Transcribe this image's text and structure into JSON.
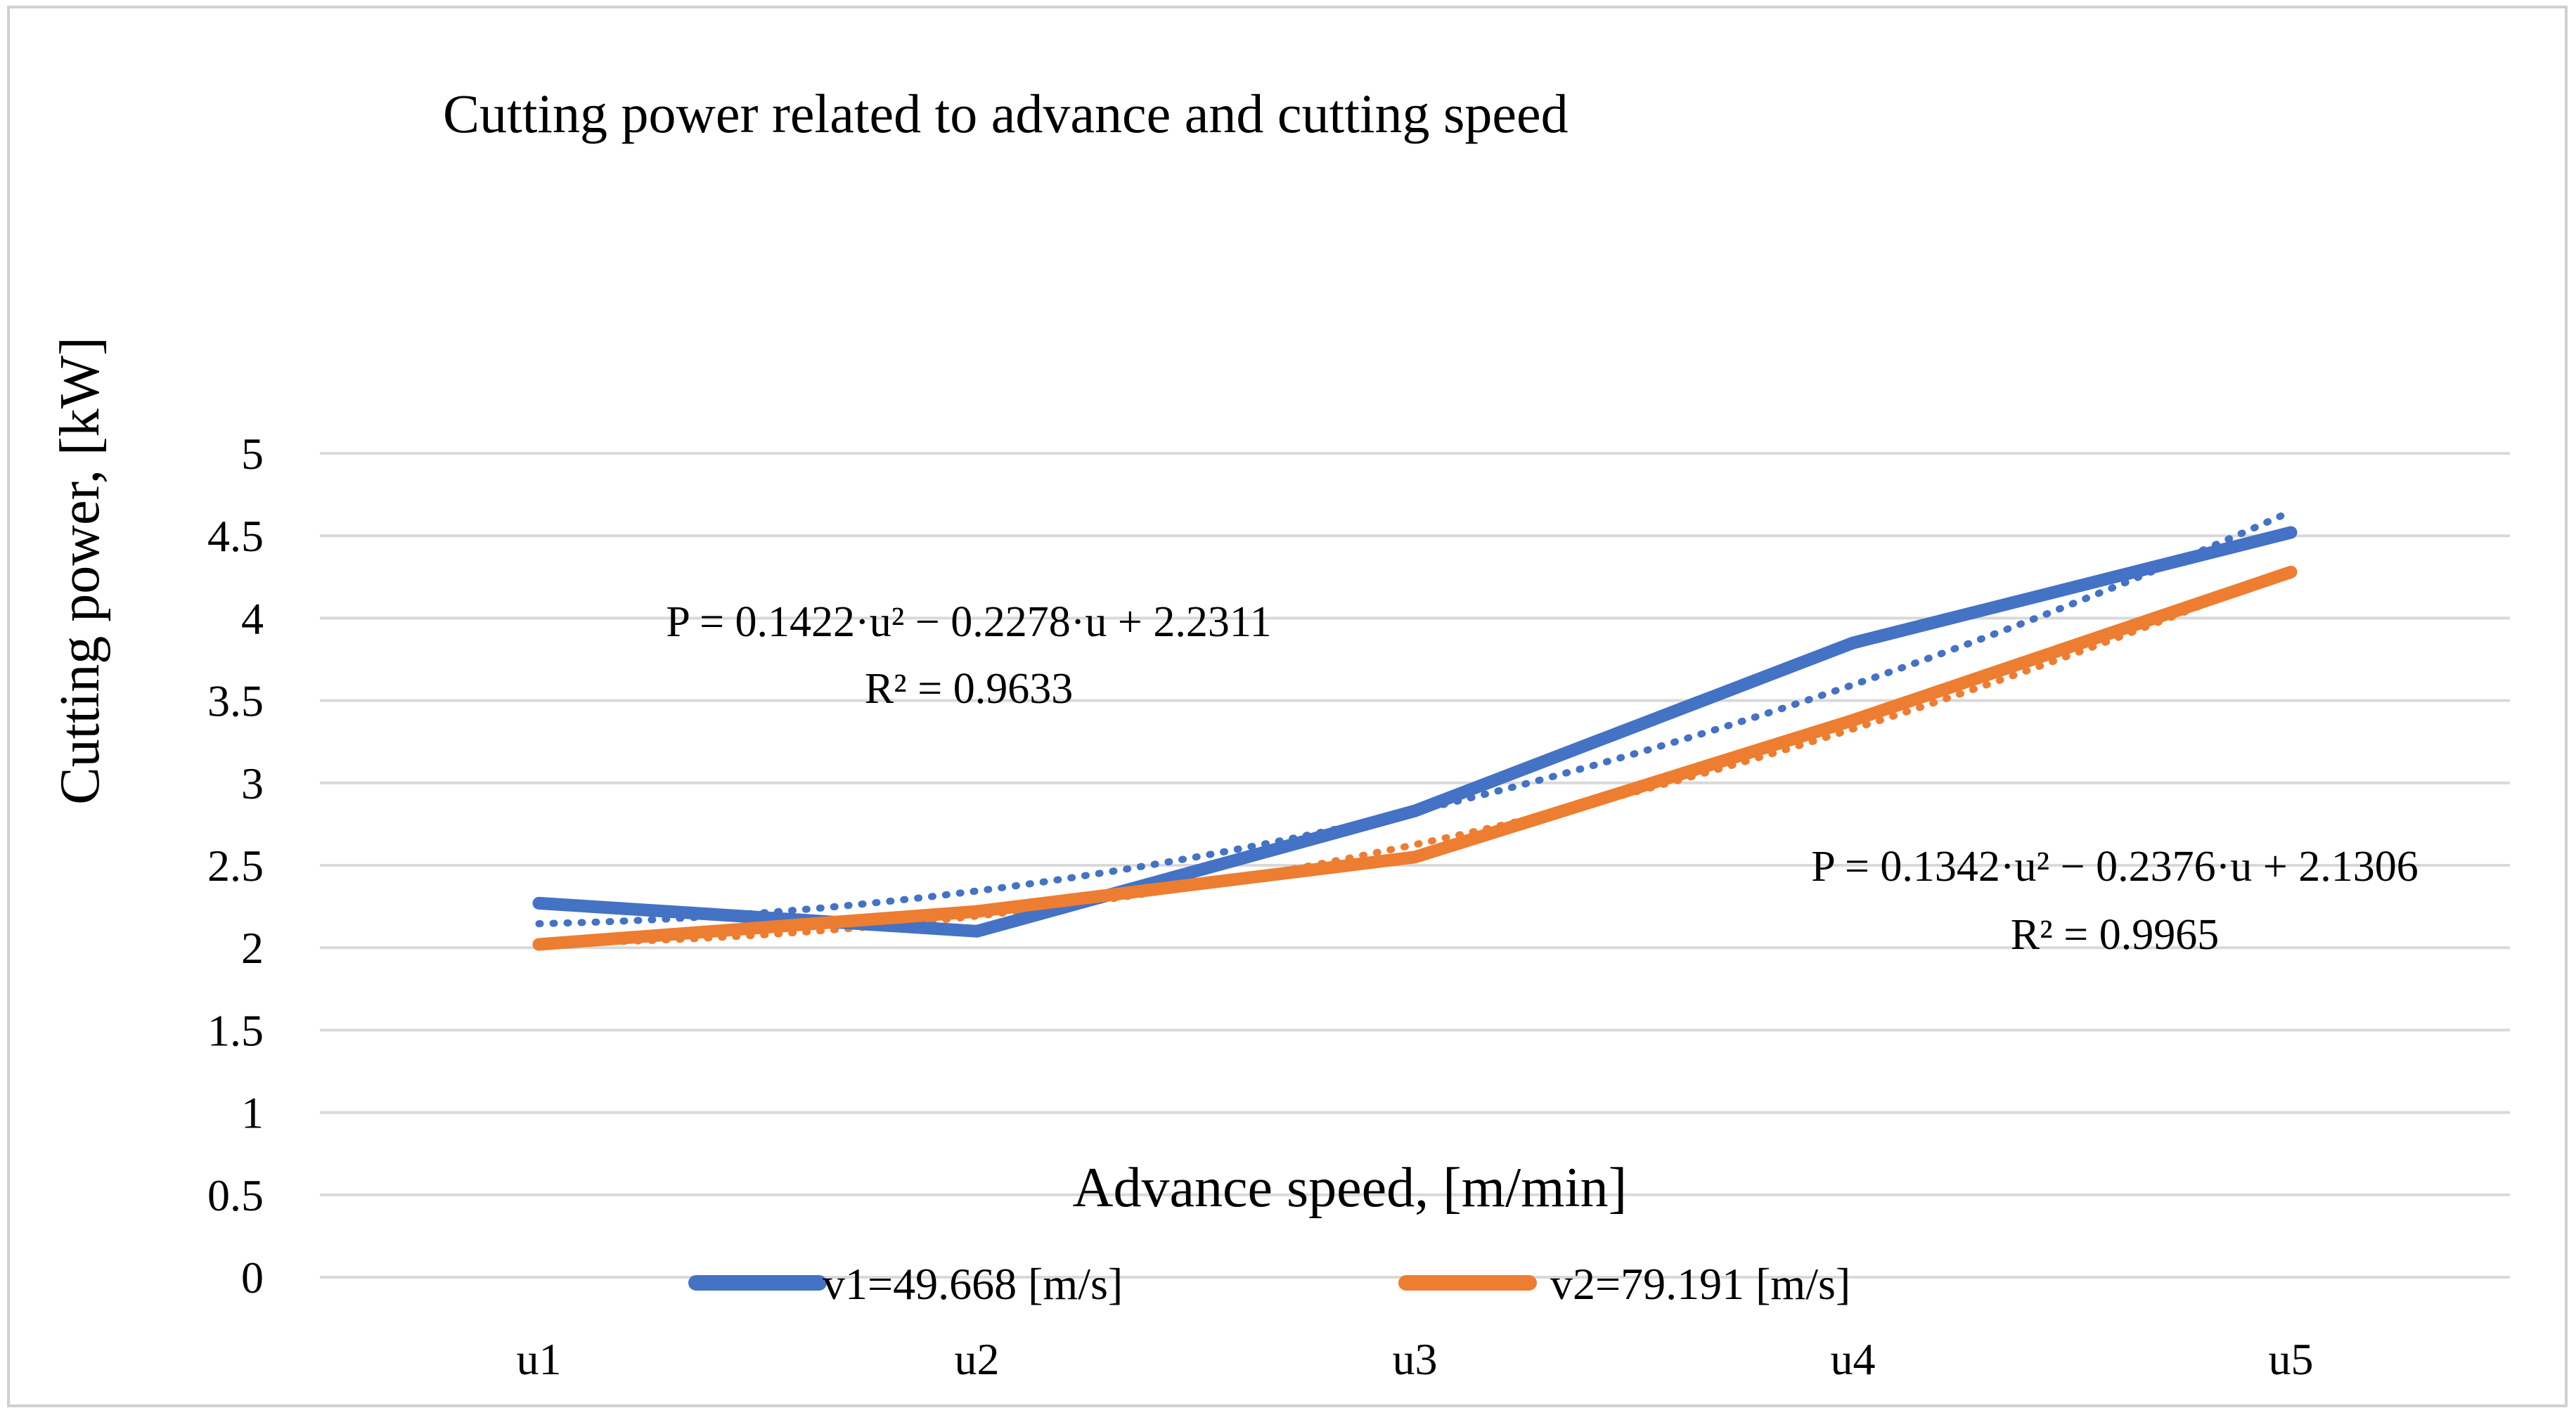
{
  "chart_data": {
    "type": "line",
    "title": "Cutting power related to advance and cutting speed",
    "xlabel": "Advance speed, [m/min]",
    "ylabel": "Cutting power, [kW]",
    "categories": [
      "u1",
      "u2",
      "u3",
      "u4",
      "u5"
    ],
    "ylim": [
      0,
      5
    ],
    "yticks": [
      {
        "value": 0,
        "label": "0"
      },
      {
        "value": 0.5,
        "label": "0.5"
      },
      {
        "value": 1,
        "label": "1"
      },
      {
        "value": 1.5,
        "label": "1.5"
      },
      {
        "value": 2,
        "label": "2"
      },
      {
        "value": 2.5,
        "label": "2.5"
      },
      {
        "value": 3,
        "label": "3"
      },
      {
        "value": 3.5,
        "label": "3.5"
      },
      {
        "value": 4,
        "label": "4"
      },
      {
        "value": 4.5,
        "label": "4.5"
      },
      {
        "value": 5,
        "label": "5"
      }
    ],
    "grid": true,
    "legend_position": "bottom",
    "series": [
      {
        "name": "v1=49.668 [m/s]",
        "color": "#4472C4",
        "values": [
          2.27,
          2.1,
          2.83,
          3.85,
          4.52
        ],
        "trendline": {
          "type": "polynomial",
          "a": 0.1422,
          "b": -0.2278,
          "c": 2.2311,
          "equation": "P = 0.1422·u² − 0.2278·u + 2.2311",
          "r2": "R² = 0.9633",
          "label_position": "upper-left"
        }
      },
      {
        "name": "v2=79.191 [m/s]",
        "color": "#ED7D31",
        "values": [
          2.02,
          2.22,
          2.55,
          3.38,
          4.28
        ],
        "trendline": {
          "type": "polynomial",
          "a": 0.1342,
          "b": -0.2376,
          "c": 2.1306,
          "equation": "P = 0.1342·u² − 0.2376·u + 2.1306",
          "r2": "R² = 0.9965",
          "label_position": "right"
        }
      }
    ]
  }
}
